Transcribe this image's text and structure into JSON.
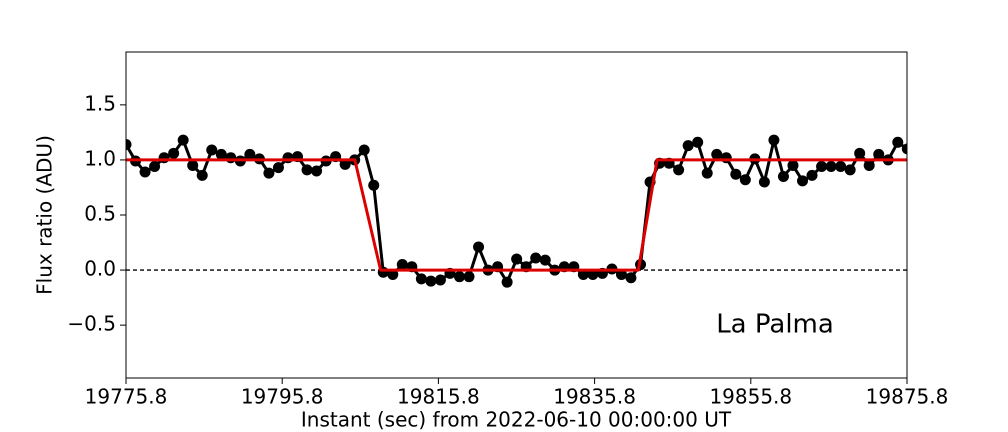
{
  "chart_data": {
    "type": "line",
    "xlabel": "Instant (sec) from 2022-06-10 00:00:00 UT",
    "ylabel": "Flux ratio (ADU)",
    "annotation": "La Palma",
    "xlim": [
      19775.8,
      19875.8
    ],
    "xticks": [
      19775.8,
      19795.8,
      19815.8,
      19835.8,
      19855.8,
      19875.8
    ],
    "ylim": [
      -0.98,
      1.98
    ],
    "yticks": [
      {
        "value": -0.5,
        "label": "−0.5"
      },
      {
        "value": 0,
        "label": "0.0"
      },
      {
        "value": 0.5,
        "label": "0.5"
      },
      {
        "value": 1,
        "label": "1.0"
      },
      {
        "value": 1.5,
        "label": "1.5"
      }
    ],
    "reference_line": 0,
    "series": [
      {
        "color": "#000000",
        "markers": true,
        "x": [
          19775.8,
          19777.02,
          19778.24,
          19779.46,
          19780.68,
          19781.9,
          19783.12,
          19784.34,
          19785.56,
          19786.78,
          19788.0,
          19789.22,
          19790.44,
          19791.66,
          19792.88,
          19794.1,
          19795.32,
          19796.54,
          19797.76,
          19798.98,
          19800.2,
          19801.42,
          19802.64,
          19803.86,
          19805.08,
          19806.3,
          19807.52,
          19808.74,
          19809.96,
          19811.18,
          19812.4,
          19813.62,
          19814.84,
          19816.06,
          19817.28,
          19818.5,
          19819.72,
          19820.94,
          19822.16,
          19823.38,
          19824.6,
          19825.82,
          19827.04,
          19828.26,
          19829.48,
          19830.7,
          19831.92,
          19833.14,
          19834.36,
          19835.58,
          19836.8,
          19838.02,
          19839.24,
          19840.46,
          19841.68,
          19842.9,
          19844.12,
          19845.34,
          19846.56,
          19847.78,
          19849.0,
          19850.22,
          19851.44,
          19852.66,
          19853.88,
          19855.1,
          19856.32,
          19857.54,
          19858.76,
          19859.98,
          19861.2,
          19862.42,
          19863.64,
          19864.86,
          19866.08,
          19867.3,
          19868.52,
          19869.74,
          19870.96,
          19872.18,
          19873.4,
          19874.62,
          19875.84
        ],
        "values": [
          1.14,
          0.99,
          0.89,
          0.94,
          1.02,
          1.06,
          1.18,
          0.95,
          0.86,
          1.09,
          1.05,
          1.02,
          0.99,
          1.05,
          1.01,
          0.88,
          0.93,
          1.02,
          1.03,
          0.91,
          0.9,
          0.99,
          1.03,
          0.96,
          1.0,
          1.09,
          0.77,
          -0.02,
          -0.04,
          0.05,
          0.03,
          -0.08,
          -0.1,
          -0.09,
          -0.03,
          -0.06,
          -0.06,
          0.21,
          0.0,
          0.03,
          -0.11,
          0.1,
          0.03,
          0.11,
          0.09,
          0.0,
          0.03,
          0.03,
          -0.04,
          -0.04,
          -0.03,
          0.01,
          -0.04,
          -0.07,
          0.05,
          0.8,
          0.97,
          0.97,
          0.91,
          1.13,
          1.16,
          0.88,
          1.05,
          1.02,
          0.87,
          0.82,
          1.01,
          0.8,
          1.18,
          0.85,
          0.95,
          0.81,
          0.86,
          0.94,
          0.94,
          0.94,
          0.91,
          1.06,
          0.95,
          1.05,
          1.0,
          1.16,
          1.1
        ]
      },
      {
        "color": "#dd0000",
        "markers": false,
        "x": [
          19775.8,
          19805.1,
          19808.4,
          19841.4,
          19843.8,
          19875.8
        ],
        "values": [
          1,
          1,
          0,
          0,
          1,
          1
        ]
      }
    ]
  }
}
